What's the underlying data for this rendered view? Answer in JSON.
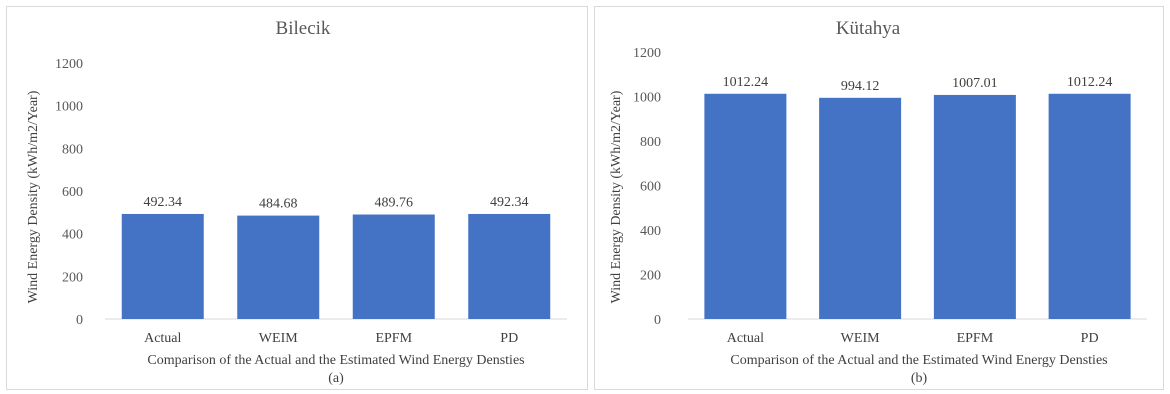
{
  "chart_data": [
    {
      "type": "bar",
      "title": "Bilecik",
      "categories": [
        "Actual",
        "WEIM",
        "EPFM",
        "PD"
      ],
      "values": [
        492.34,
        484.68,
        489.76,
        492.34
      ],
      "value_labels": [
        "492.34",
        "484.68",
        "489.76",
        "492.34"
      ],
      "xlabel": "Comparison of the Actual and the Estimated Wind Energy Densties",
      "ylabel": "Wind Energy Density (kWh/m2/Year)",
      "ylim": [
        0,
        1200
      ],
      "yticks": [
        0,
        200,
        400,
        600,
        800,
        1000,
        1200
      ],
      "sublabel": "(a)",
      "grid": false,
      "bar_color": "#4472c4"
    },
    {
      "type": "bar",
      "title": "Kütahya",
      "categories": [
        "Actual",
        "WEIM",
        "EPFM",
        "PD"
      ],
      "values": [
        1012.24,
        994.12,
        1007.01,
        1012.24
      ],
      "value_labels": [
        "1012.24",
        "994.12",
        "1007.01",
        "1012.24"
      ],
      "xlabel": "Comparison of the Actual and the Estimated Wind Energy Densties",
      "ylabel": "Wind Energy Density (kWh/m2/Year)",
      "ylim": [
        0,
        1200
      ],
      "yticks": [
        0,
        200,
        400,
        600,
        800,
        1000,
        1200
      ],
      "sublabel": "(b)",
      "grid": false,
      "bar_color": "#4472c4"
    }
  ]
}
